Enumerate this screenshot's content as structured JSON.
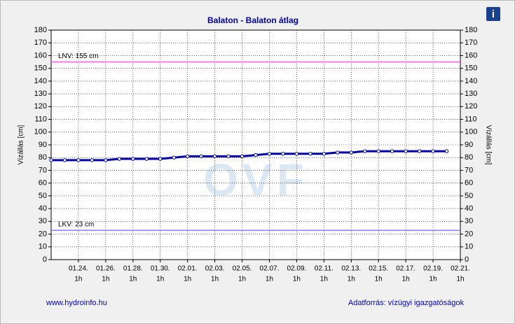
{
  "chart_data": {
    "type": "line",
    "title": "Balaton - Balaton átlag",
    "y_label": "Vízállás [cm]",
    "y2_label": "Vízállás [cm]",
    "watermark": "OVF",
    "categories": [
      null,
      null,
      "01.24.",
      null,
      "01.26.",
      null,
      "01.28.",
      null,
      "01.30.",
      null,
      "02.01.",
      null,
      "02.03.",
      null,
      "02.05.",
      null,
      "02.07.",
      null,
      "02.09.",
      null,
      "02.11.",
      null,
      "02.13.",
      null,
      "02.15.",
      null,
      "02.17.",
      null,
      "02.19.",
      null,
      "02.21."
    ],
    "category_times": [
      null,
      null,
      "1h",
      null,
      "1h",
      null,
      "1h",
      null,
      "1h",
      null,
      "1h",
      null,
      "1h",
      null,
      "1h",
      null,
      "1h",
      null,
      "1h",
      null,
      "1h",
      null,
      "1h",
      null,
      "1h",
      null,
      "1h",
      null,
      "1h",
      null,
      "1h"
    ],
    "series": [
      {
        "name": "Vízállás",
        "color": "#0000aa",
        "values": [
          78,
          78,
          78,
          78,
          78,
          79,
          79,
          79,
          79,
          80,
          81,
          81,
          81,
          81,
          81,
          82,
          83,
          83,
          83,
          83,
          83,
          84,
          84,
          85,
          85,
          85,
          85,
          85,
          85,
          85,
          null
        ]
      }
    ],
    "reference_lines": [
      {
        "label": "LNV: 155 cm",
        "value": 155,
        "color": "#ff55ff"
      },
      {
        "label": "LKV: 23 cm",
        "value": 23,
        "color": "#8080ff"
      }
    ],
    "ylim": [
      0,
      180
    ],
    "yticks": [
      0,
      10,
      20,
      30,
      40,
      50,
      60,
      70,
      80,
      90,
      100,
      110,
      120,
      130,
      140,
      150,
      160,
      170,
      180
    ],
    "y2lim": [
      0,
      180
    ],
    "y2ticks": [
      0,
      10,
      20,
      30,
      40,
      50,
      60,
      70,
      80,
      90,
      100,
      110,
      120,
      130,
      140,
      150,
      160,
      170,
      180
    ],
    "grid": true
  },
  "footer": {
    "left": "www.hydroinfo.hu",
    "right": "Adatforrás: vízügyi igazgatóságok"
  },
  "info_icon": "i"
}
